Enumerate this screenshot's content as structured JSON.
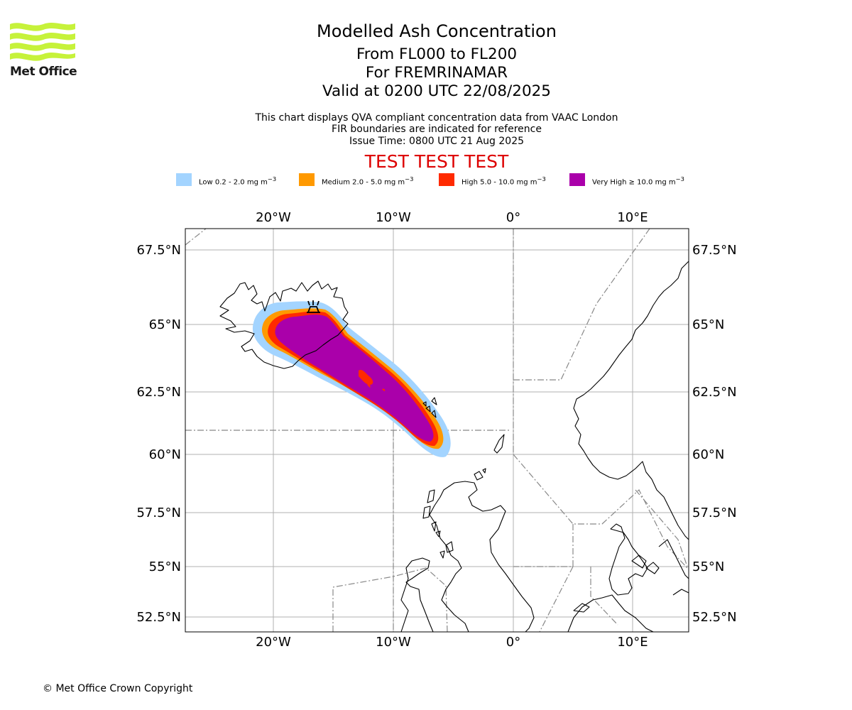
{
  "header": {
    "logo_text": "Met Office",
    "title": "Modelled Ash Concentration",
    "level_range": "From FL000 to FL200",
    "volcano": "For FREMRINAMAR",
    "valid_time": "Valid at 0200 UTC 22/08/2025",
    "description_1": "This chart displays QVA compliant concentration data from VAAC London",
    "description_2": "FIR boundaries are indicated for reference",
    "issue_time": "Issue Time: 0800 UTC 21 Aug 2025",
    "test_banner": "TEST TEST TEST"
  },
  "legend": [
    {
      "label": "Low 0.2 - 2.0 mg m",
      "sup": "−3",
      "color": "#a3d4ff"
    },
    {
      "label": "Medium 2.0 - 5.0 mg m",
      "sup": "−3",
      "color": "#ff9900"
    },
    {
      "label": "High 5.0 - 10.0 mg m",
      "sup": "−3",
      "color": "#ff2a00"
    },
    {
      "label": "Very High  ≥  10.0 mg m",
      "sup": "−3",
      "color": "#aa00aa"
    }
  ],
  "map": {
    "lon_ticks": [
      "20°W",
      "10°W",
      "0°",
      "10°E"
    ],
    "lat_ticks": [
      "67.5°N",
      "65°N",
      "62.5°N",
      "60°N",
      "57.5°N",
      "55°N",
      "52.5°N"
    ],
    "volcano_marker": "volcano-icon",
    "colors": {
      "coast": "#000000",
      "grid": "#b0b0b0",
      "fir": "#888888"
    }
  },
  "footer": {
    "copyright": "© Met Office Crown Copyright"
  }
}
